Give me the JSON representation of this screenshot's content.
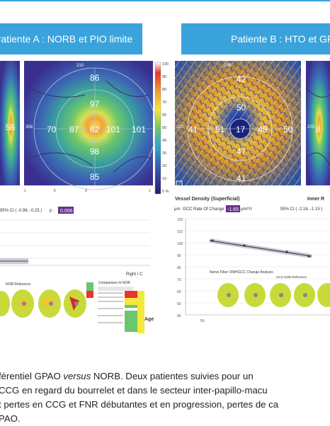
{
  "header_a": "Patiente A : NORB et PIO limite",
  "header_b": "Patiente B : HTO et GPAO",
  "left_map": {
    "numbers": [
      "56",
      "70",
      "87",
      "62",
      "101",
      "101",
      "97",
      "98",
      "86",
      "85"
    ],
    "corner": "210",
    "side": "358"
  },
  "colorbar": [
    "100",
    "90",
    "80",
    "70",
    "60",
    "50",
    "40",
    "30",
    "20",
    "10",
    "0 %"
  ],
  "vessel_map": {
    "numbers": [
      "42",
      "50",
      "41",
      "51",
      "17",
      "49",
      "50",
      "47",
      "41"
    ],
    "corner": "208",
    "side": "203",
    "title": "Vessel Density (Superficial)"
  },
  "right_map": {
    "numbers": [
      "8"
    ],
    "side": "203",
    "title": "Inner R"
  },
  "chart_a": {
    "ci": "95% CI ( -0.96, -0.25 )",
    "p_label": "p :",
    "p_value": "0.006",
    "right_label": "Right / C",
    "age": "Age",
    "reference": "NOB Reference",
    "compare": "Comparison to NOB",
    "ticks": [
      "1",
      "5",
      "9",
      "1"
    ]
  },
  "chart_b": {
    "title": "GCC Rate Of Change :",
    "rate": "-1.65",
    "unit": "μm/Yr",
    "ci": "95% CI ( -2.16, -1.15 )",
    "y_unit": "μm",
    "y_ticks": [
      "120",
      "110",
      "100",
      "90",
      "80",
      "70",
      "60",
      "50",
      "40"
    ],
    "x_tick": "50",
    "analysis": "Nerve Fiber ONH/GCC Change Analysis",
    "reference": "GCC NOB Reference"
  },
  "caption": [
    "férentiel GPAO versus NORB. Deux patientes suivies pour un",
    "CCG en regard du bourrelet et dans le secteur inter-papillo-macu",
    "t pertes en CCG et FNR débutantes et en progression, pertes de ca",
    "PAO."
  ],
  "caption_versus": "versus"
}
